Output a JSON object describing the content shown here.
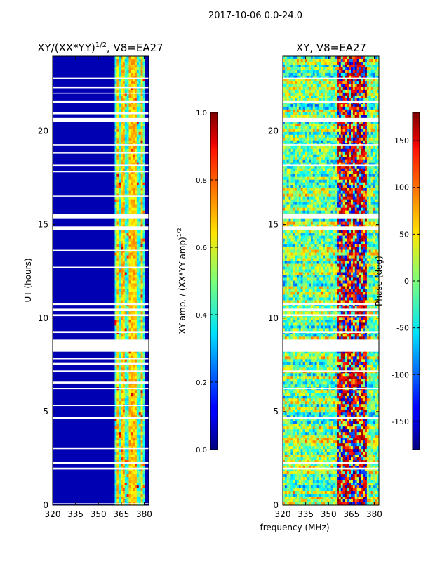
{
  "figure": {
    "suptitle": "2017-10-06 0.0-24.0",
    "shared_xlabel": "frequency (MHz)"
  },
  "chart_data": [
    {
      "type": "heatmap",
      "title_main": "XY/(XX*YY)",
      "title_exp": "1/2",
      "title_suffix": ", V8=EA27",
      "xlabel": "",
      "ylabel": "UT (hours)",
      "x_ticks": [
        "320",
        "335",
        "350",
        "365",
        "380"
      ],
      "x_tick_values": [
        320,
        335,
        350,
        365,
        380
      ],
      "xlim": [
        320,
        383
      ],
      "y_ticks": [
        "0",
        "5",
        "10",
        "15",
        "20"
      ],
      "y_tick_values": [
        0,
        5,
        10,
        15,
        20
      ],
      "ylim": [
        0,
        24
      ],
      "colorbar": {
        "label_main": "XY amp. / (XX*YY amp)",
        "label_exp": "1/2",
        "ticks": [
          "0.0",
          "0.2",
          "0.4",
          "0.6",
          "0.8",
          "1.0"
        ],
        "tick_values": [
          0.0,
          0.2,
          0.4,
          0.6,
          0.8,
          1.0
        ],
        "range": [
          0.0,
          1.0
        ],
        "colormap": "jet"
      },
      "background_level": 0.05,
      "active_band_mhz": [
        361,
        380
      ],
      "active_band_level": 0.4,
      "bright_channels_mhz": [
        363,
        366,
        371,
        374,
        378
      ],
      "bright_channel_level": 0.6,
      "flagged_ut_hours": [
        [
          0.05,
          0.1
        ],
        [
          1.9,
          2.0
        ],
        [
          2.2,
          2.3
        ],
        [
          3.0,
          3.05
        ],
        [
          4.6,
          4.7
        ],
        [
          5.3,
          5.35
        ],
        [
          6.2,
          6.25
        ],
        [
          6.5,
          6.6
        ],
        [
          7.1,
          7.2
        ],
        [
          7.5,
          7.6
        ],
        [
          7.8,
          7.85
        ],
        [
          8.2,
          8.85
        ],
        [
          9.2,
          9.3
        ],
        [
          10.1,
          10.2
        ],
        [
          10.4,
          10.5
        ],
        [
          10.7,
          10.8
        ],
        [
          12.7,
          12.75
        ],
        [
          13.6,
          13.65
        ],
        [
          14.7,
          14.9
        ],
        [
          15.3,
          15.55
        ],
        [
          16.5,
          16.55
        ],
        [
          17.8,
          17.85
        ],
        [
          18.1,
          18.2
        ],
        [
          18.8,
          18.85
        ],
        [
          19.2,
          19.3
        ],
        [
          20.5,
          20.7
        ],
        [
          20.9,
          21.0
        ],
        [
          21.5,
          21.6
        ],
        [
          22.0,
          22.05
        ],
        [
          22.3,
          22.35
        ],
        [
          22.8,
          22.85
        ]
      ]
    },
    {
      "type": "heatmap",
      "title": "XY, V8=EA27",
      "xlabel": "frequency (MHz)",
      "ylabel": "",
      "x_ticks": [
        "320",
        "335",
        "350",
        "365",
        "380"
      ],
      "x_tick_values": [
        320,
        335,
        350,
        365,
        380
      ],
      "xlim": [
        320,
        383
      ],
      "y_ticks": [
        "0",
        "5",
        "10",
        "15",
        "20"
      ],
      "y_tick_values": [
        0,
        5,
        10,
        15,
        20
      ],
      "ylim": [
        0,
        24
      ],
      "colorbar": {
        "label": "Phase (deg)",
        "ticks": [
          "-150",
          "-100",
          "-50",
          "0",
          "50",
          "100",
          "150"
        ],
        "tick_values": [
          -150,
          -100,
          -50,
          0,
          50,
          100,
          150
        ],
        "range": [
          -180,
          180
        ],
        "colormap": "jet"
      },
      "mean_phase_deg": 0,
      "phase_wrap_band_mhz": [
        355,
        375
      ],
      "flagged_ut_hours": [
        [
          1.9,
          2.0
        ],
        [
          2.2,
          2.3
        ],
        [
          4.6,
          4.7
        ],
        [
          6.2,
          6.25
        ],
        [
          7.1,
          7.2
        ],
        [
          8.2,
          8.85
        ],
        [
          9.2,
          9.3
        ],
        [
          10.1,
          10.2
        ],
        [
          10.4,
          10.5
        ],
        [
          10.7,
          10.8
        ],
        [
          14.7,
          14.9
        ],
        [
          15.3,
          15.55
        ],
        [
          18.1,
          18.2
        ],
        [
          19.2,
          19.3
        ],
        [
          20.5,
          20.7
        ],
        [
          21.5,
          21.6
        ],
        [
          22.8,
          22.85
        ]
      ]
    }
  ]
}
